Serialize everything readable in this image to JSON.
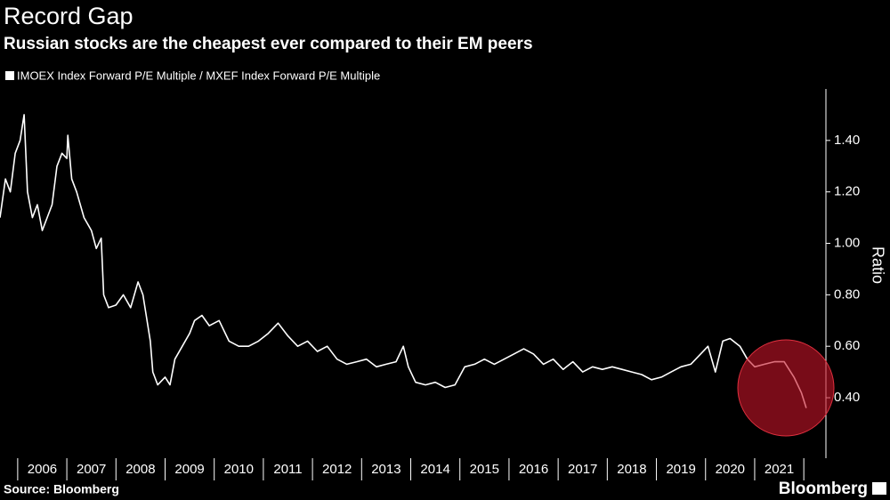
{
  "chart_data": {
    "type": "line",
    "title": "Record Gap",
    "subtitle": "Russian stocks are the cheapest ever compared to their EM peers",
    "y_axis_label": "Ratio",
    "source": "Source: Bloomberg",
    "brand": "Bloomberg",
    "categories": [
      "2006",
      "2007",
      "2008",
      "2009",
      "2010",
      "2011",
      "2012",
      "2013",
      "2014",
      "2015",
      "2016",
      "2017",
      "2018",
      "2019",
      "2020",
      "2021"
    ],
    "xlim": [
      2005.64,
      2022.45
    ],
    "xticks": [
      2006,
      2007,
      2008,
      2009,
      2010,
      2011,
      2012,
      2013,
      2014,
      2015,
      2016,
      2017,
      2018,
      2019,
      2020,
      2021,
      2022
    ],
    "ylim": [
      0.165,
      1.6
    ],
    "yticks": [
      {
        "value": 0.4,
        "label": "0.40"
      },
      {
        "value": 0.6,
        "label": "0.60"
      },
      {
        "value": 0.8,
        "label": "0.80"
      },
      {
        "value": 1.0,
        "label": "1.00"
      },
      {
        "value": 1.2,
        "label": "1.20"
      },
      {
        "value": 1.4,
        "label": "1.40"
      }
    ],
    "series": [
      {
        "name": "IMOEX Index Forward P/E Multiple / MXEF Index Forward P/E Multiple",
        "color": "#ffffff",
        "x": [
          2005.64,
          2005.75,
          2005.85,
          2005.95,
          2006.05,
          2006.13,
          2006.2,
          2006.3,
          2006.4,
          2006.5,
          2006.6,
          2006.7,
          2006.8,
          2006.9,
          2007.0,
          2007.02,
          2007.1,
          2007.2,
          2007.35,
          2007.5,
          2007.6,
          2007.7,
          2007.75,
          2007.85,
          2008.0,
          2008.15,
          2008.3,
          2008.45,
          2008.55,
          2008.7,
          2008.75,
          2008.85,
          2009.0,
          2009.1,
          2009.2,
          2009.35,
          2009.5,
          2009.6,
          2009.75,
          2009.9,
          2010.1,
          2010.3,
          2010.5,
          2010.7,
          2010.9,
          2011.1,
          2011.3,
          2011.5,
          2011.7,
          2011.9,
          2012.1,
          2012.3,
          2012.5,
          2012.7,
          2012.9,
          2013.1,
          2013.3,
          2013.5,
          2013.7,
          2013.85,
          2013.95,
          2014.1,
          2014.3,
          2014.5,
          2014.7,
          2014.9,
          2015.1,
          2015.3,
          2015.5,
          2015.7,
          2015.9,
          2016.1,
          2016.3,
          2016.5,
          2016.7,
          2016.9,
          2017.1,
          2017.3,
          2017.5,
          2017.7,
          2017.9,
          2018.1,
          2018.3,
          2018.5,
          2018.7,
          2018.9,
          2019.1,
          2019.3,
          2019.5,
          2019.7,
          2019.9,
          2020.05,
          2020.2,
          2020.35,
          2020.5,
          2020.7,
          2020.85,
          2021.0,
          2021.2,
          2021.4,
          2021.6,
          2021.8,
          2021.95,
          2022.05
        ],
        "values": [
          1.1,
          1.25,
          1.2,
          1.35,
          1.4,
          1.5,
          1.2,
          1.1,
          1.15,
          1.05,
          1.1,
          1.15,
          1.3,
          1.35,
          1.33,
          1.42,
          1.25,
          1.2,
          1.1,
          1.05,
          0.98,
          1.02,
          0.8,
          0.75,
          0.76,
          0.8,
          0.75,
          0.85,
          0.8,
          0.62,
          0.5,
          0.45,
          0.48,
          0.45,
          0.55,
          0.6,
          0.65,
          0.7,
          0.72,
          0.68,
          0.7,
          0.62,
          0.6,
          0.6,
          0.62,
          0.65,
          0.69,
          0.64,
          0.6,
          0.62,
          0.58,
          0.6,
          0.55,
          0.53,
          0.54,
          0.55,
          0.52,
          0.53,
          0.54,
          0.6,
          0.52,
          0.46,
          0.45,
          0.46,
          0.44,
          0.45,
          0.52,
          0.53,
          0.55,
          0.53,
          0.55,
          0.57,
          0.59,
          0.57,
          0.53,
          0.55,
          0.51,
          0.54,
          0.5,
          0.52,
          0.51,
          0.52,
          0.51,
          0.5,
          0.49,
          0.47,
          0.48,
          0.5,
          0.52,
          0.53,
          0.57,
          0.6,
          0.5,
          0.62,
          0.63,
          0.6,
          0.55,
          0.52,
          0.53,
          0.54,
          0.54,
          0.48,
          0.42,
          0.36
        ]
      }
    ]
  }
}
